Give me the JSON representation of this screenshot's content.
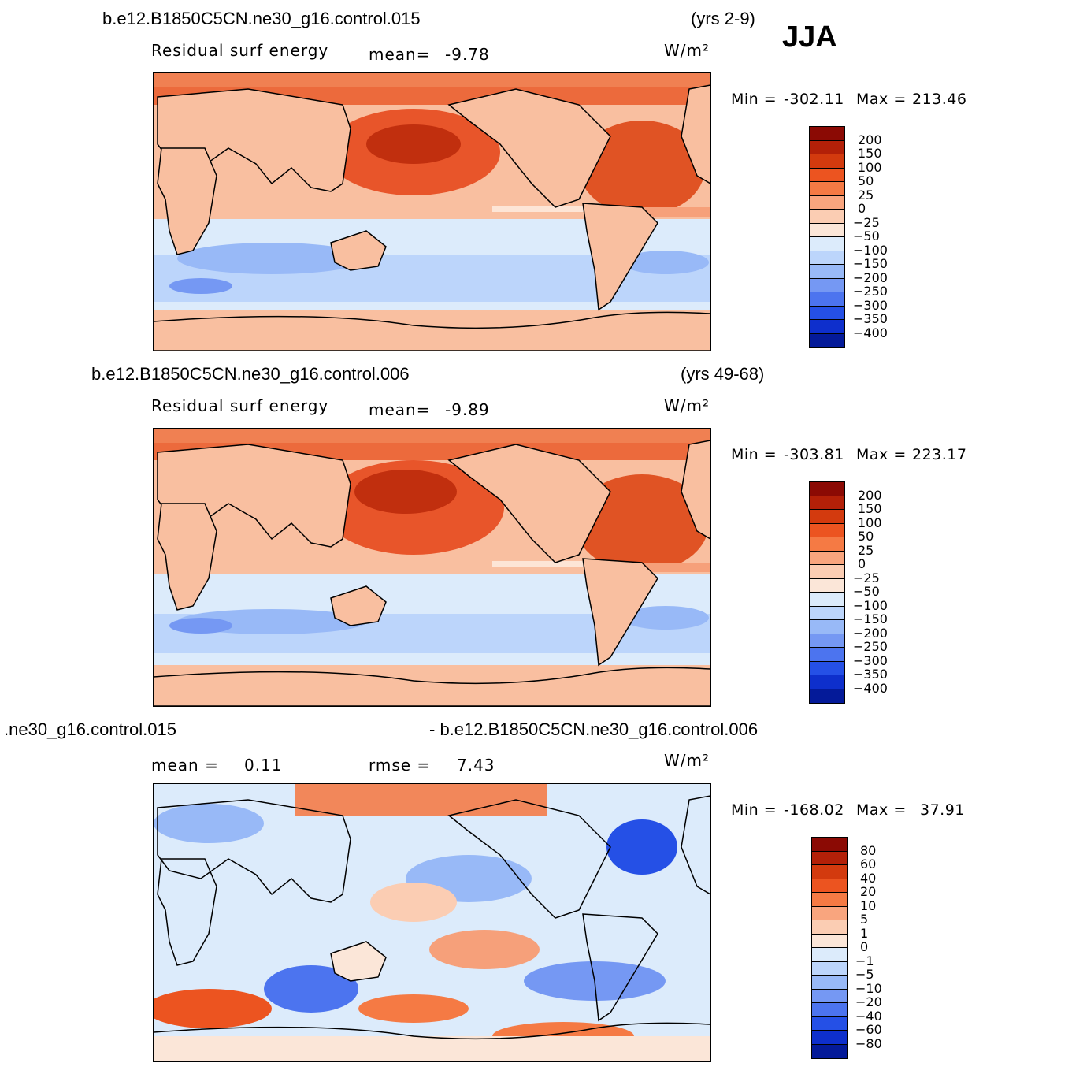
{
  "season": "JJA",
  "panels": [
    {
      "case_label": "b.e12.B1850C5CN.ne30_g16.control.015",
      "years": "(yrs 2-9)",
      "left_label": "Residual surf energy",
      "stat_label": "mean=",
      "stat_value": "-9.78",
      "units": "W/m²",
      "min_label": "Min =",
      "min_value": "-302.11",
      "max_label": "Max =",
      "max_value": "213.46",
      "levels": [
        "200",
        "150",
        "100",
        "50",
        "25",
        "0",
        "-25",
        "-50",
        "-100",
        "-150",
        "-200",
        "-250",
        "-300",
        "-350",
        "-400"
      ],
      "colors": [
        "#8b0a04",
        "#b32008",
        "#d33a0e",
        "#ec5420",
        "#f57a44",
        "#f9a57e",
        "#fbcdb3",
        "#fbe6d8",
        "#dcebfb",
        "#bcd5fb",
        "#98b9f7",
        "#7598f3",
        "#4c74ef",
        "#2550e6",
        "#0e2fcc",
        "#041a99"
      ]
    },
    {
      "case_label": "b.e12.B1850C5CN.ne30_g16.control.006",
      "years": "(yrs 49-68)",
      "left_label": "Residual surf energy",
      "stat_label": "mean=",
      "stat_value": "-9.89",
      "units": "W/m²",
      "min_label": "Min =",
      "min_value": "-303.81",
      "max_label": "Max =",
      "max_value": "223.17",
      "levels": [
        "200",
        "150",
        "100",
        "50",
        "25",
        "0",
        "-25",
        "-50",
        "-100",
        "-150",
        "-200",
        "-250",
        "-300",
        "-350",
        "-400"
      ],
      "colors": [
        "#8b0a04",
        "#b32008",
        "#d33a0e",
        "#ec5420",
        "#f57a44",
        "#f9a57e",
        "#fbcdb3",
        "#fbe6d8",
        "#dcebfb",
        "#bcd5fb",
        "#98b9f7",
        "#7598f3",
        "#4c74ef",
        "#2550e6",
        "#0e2fcc",
        "#041a99"
      ]
    },
    {
      "case_label_left": ".ne30_g16.control.015",
      "case_label_right": "- b.e12.B1850C5CN.ne30_g16.control.006",
      "mean_label": "mean =",
      "mean_value": "0.11",
      "rmse_label": "rmse =",
      "rmse_value": "7.43",
      "units": "W/m²",
      "min_label": "Min =",
      "min_value": "-168.02",
      "max_label": "Max =",
      "max_value": "37.91",
      "levels": [
        "80",
        "60",
        "40",
        "20",
        "10",
        "5",
        "1",
        "0",
        "-1",
        "-5",
        "-10",
        "-20",
        "-40",
        "-60",
        "-80"
      ],
      "colors": [
        "#8b0a04",
        "#b32008",
        "#d33a0e",
        "#ec5420",
        "#f57a44",
        "#f9a57e",
        "#fbcdb3",
        "#fbe6d8",
        "#dcebfb",
        "#bcd5fb",
        "#98b9f7",
        "#7598f3",
        "#4c74ef",
        "#2550e6",
        "#0e2fcc",
        "#041a99"
      ]
    }
  ]
}
